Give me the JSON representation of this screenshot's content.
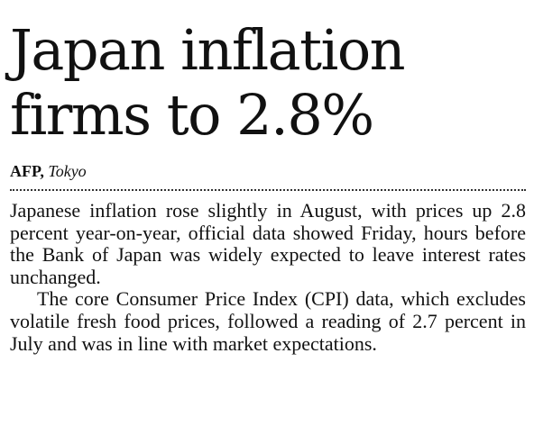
{
  "article": {
    "headline_line1": "Japan inflation",
    "headline_line2": "firms to 2.8%",
    "byline": {
      "agency": "AFP,",
      "city": "Tokyo"
    },
    "paragraphs": [
      "Japanese inflation rose slightly in August, with prices up 2.8 percent year-on-year, official data showed Friday, hours before the Bank of Japan was widely expected to leave interest rates unchanged.",
      "The core Consumer Price Index (CPI) data, which excludes volatile fresh food prices, followed a reading of 2.7 percent in July and was in line with market expectations."
    ]
  }
}
